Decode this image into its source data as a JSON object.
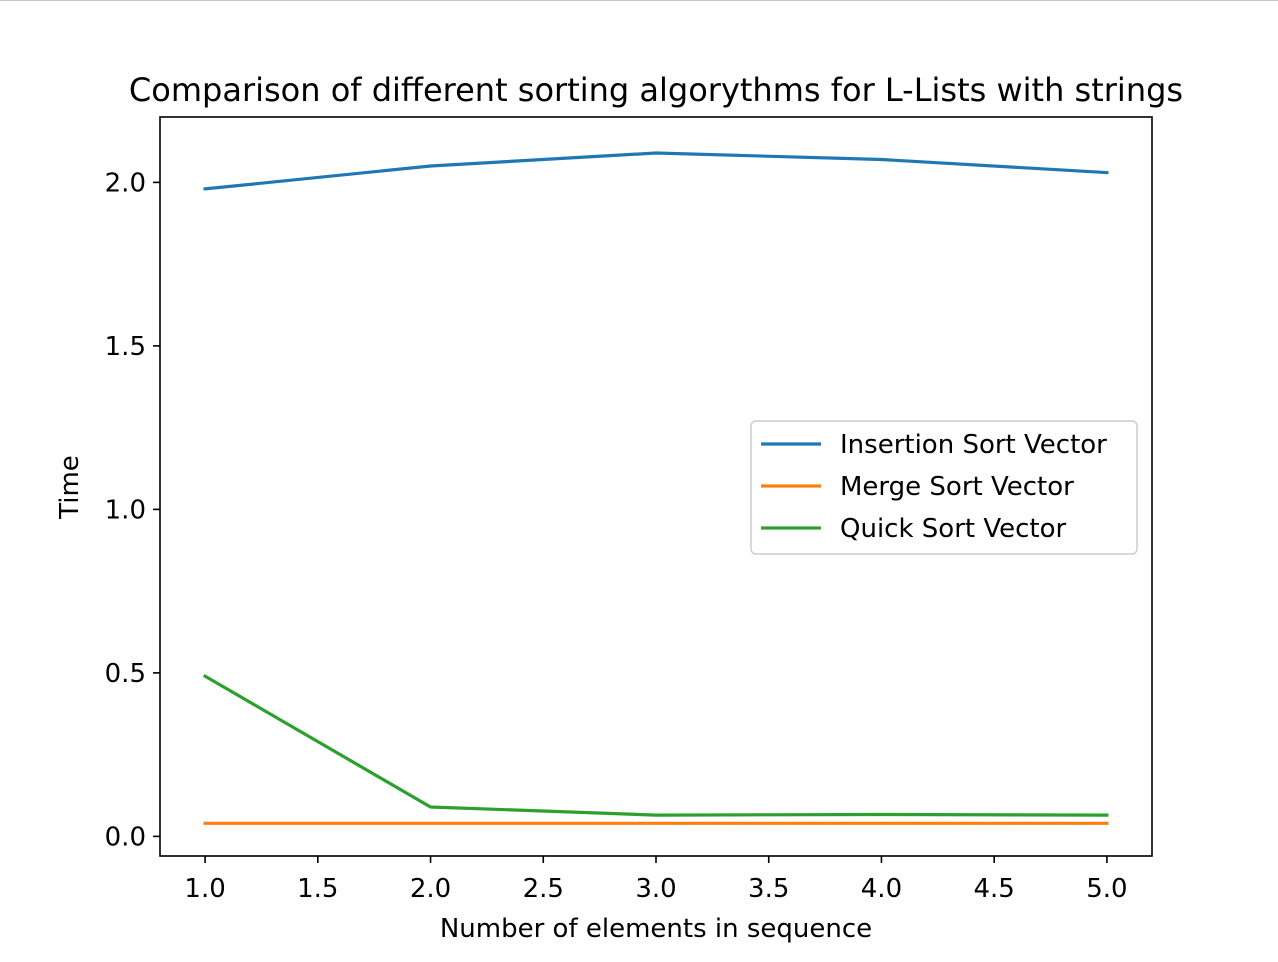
{
  "chart_data": {
    "type": "line",
    "title": "Comparison of different sorting algorythms for L-Lists with strings",
    "xlabel": "Number of elements in sequence",
    "ylabel": "Time",
    "x": [
      1.0,
      2.0,
      3.0,
      4.0,
      5.0
    ],
    "xlim": [
      0.8,
      5.2
    ],
    "ylim": [
      -0.06,
      2.2
    ],
    "xticks": [
      "1.0",
      "1.5",
      "2.0",
      "2.5",
      "3.0",
      "3.5",
      "4.0",
      "4.5",
      "5.0"
    ],
    "xtick_values": [
      1.0,
      1.5,
      2.0,
      2.5,
      3.0,
      3.5,
      4.0,
      4.5,
      5.0
    ],
    "yticks": [
      "0.0",
      "0.5",
      "1.0",
      "1.5",
      "2.0"
    ],
    "ytick_values": [
      0.0,
      0.5,
      1.0,
      1.5,
      2.0
    ],
    "grid": false,
    "legend_position": "center-right",
    "series": [
      {
        "name": "Insertion Sort Vector",
        "color": "#1f77b4",
        "values": [
          1.98,
          2.05,
          2.09,
          2.07,
          2.03
        ]
      },
      {
        "name": "Merge Sort Vector",
        "color": "#ff7f0e",
        "values": [
          0.04,
          0.04,
          0.04,
          0.04,
          0.04
        ]
      },
      {
        "name": "Quick Sort Vector",
        "color": "#2ca02c",
        "values": [
          0.49,
          0.09,
          0.065,
          0.067,
          0.065
        ]
      }
    ]
  }
}
